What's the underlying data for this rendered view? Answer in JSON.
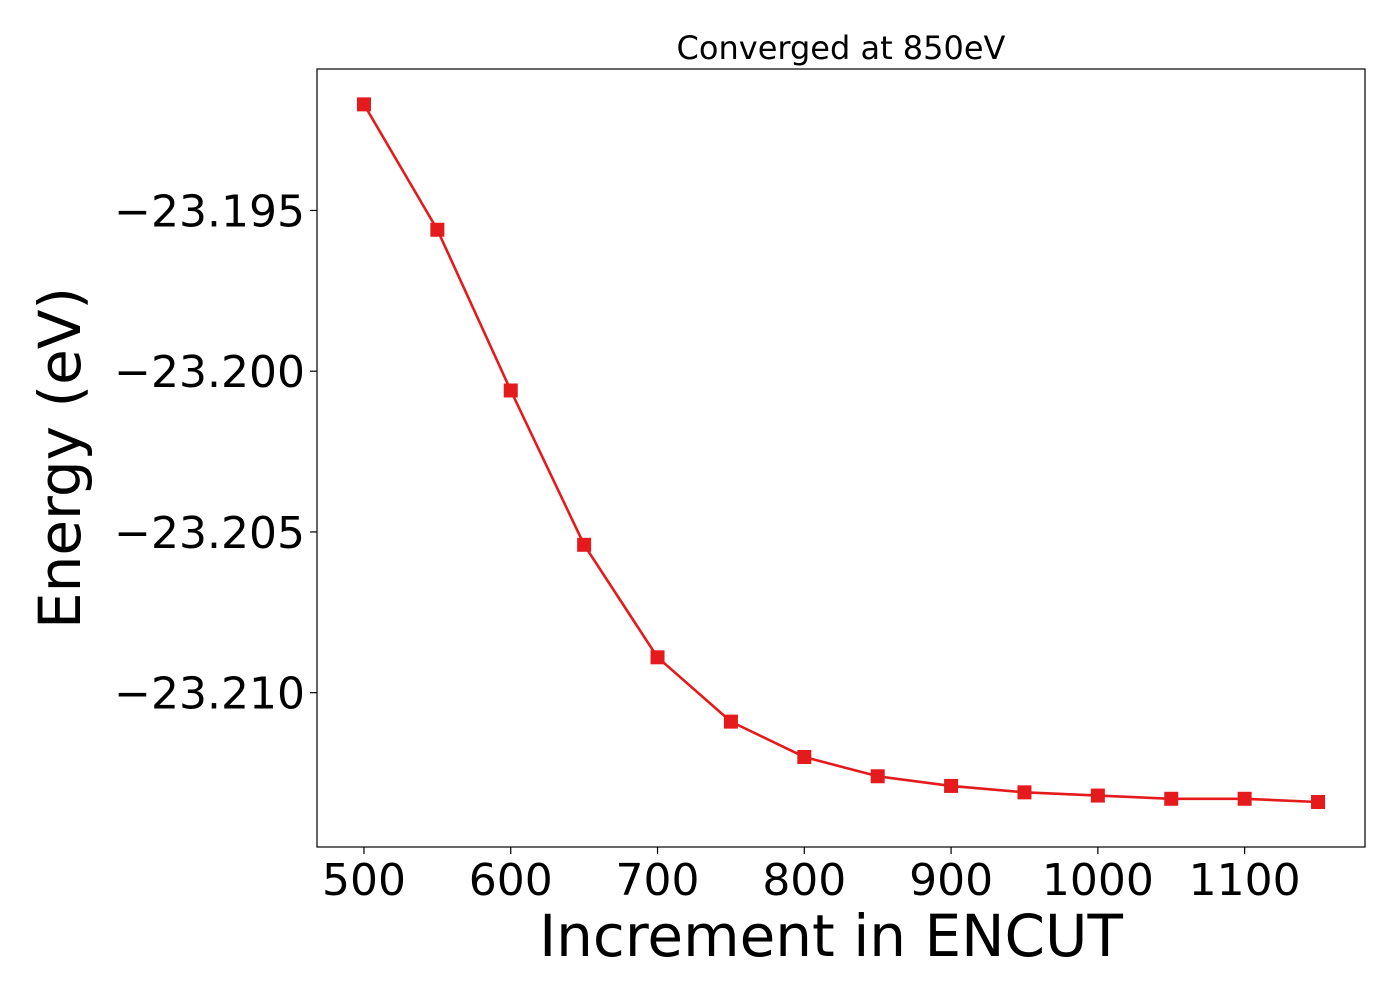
{
  "chart_data": {
    "type": "line",
    "title": "Converged at 850eV",
    "xlabel": "Increment in ENCUT",
    "ylabel": "Energy (eV)",
    "x": [
      500,
      550,
      600,
      650,
      700,
      750,
      800,
      850,
      900,
      950,
      1000,
      1050,
      1100,
      1150
    ],
    "series": [
      {
        "values": [
          -23.1917,
          -23.1956,
          -23.2006,
          -23.2054,
          -23.2089,
          -23.2109,
          -23.212,
          -23.2126,
          -23.2129,
          -23.2131,
          -23.2132,
          -23.2133,
          -23.2133,
          -23.2134
        ]
      }
    ],
    "xlim": [
      468,
      1182
    ],
    "ylim": [
      -23.2148,
      -23.1906
    ],
    "xticks": [
      500,
      600,
      700,
      800,
      900,
      1000,
      1100
    ],
    "yticks": [
      -23.195,
      -23.2,
      -23.205,
      -23.21
    ],
    "xtick_labels": [
      "500",
      "600",
      "700",
      "800",
      "900",
      "1000",
      "1100"
    ],
    "ytick_labels": [
      "−23.195",
      "−23.200",
      "−23.205",
      "−23.210"
    ],
    "line_color": "#e41a1c",
    "marker": "square",
    "grid": false,
    "legend": "none"
  }
}
